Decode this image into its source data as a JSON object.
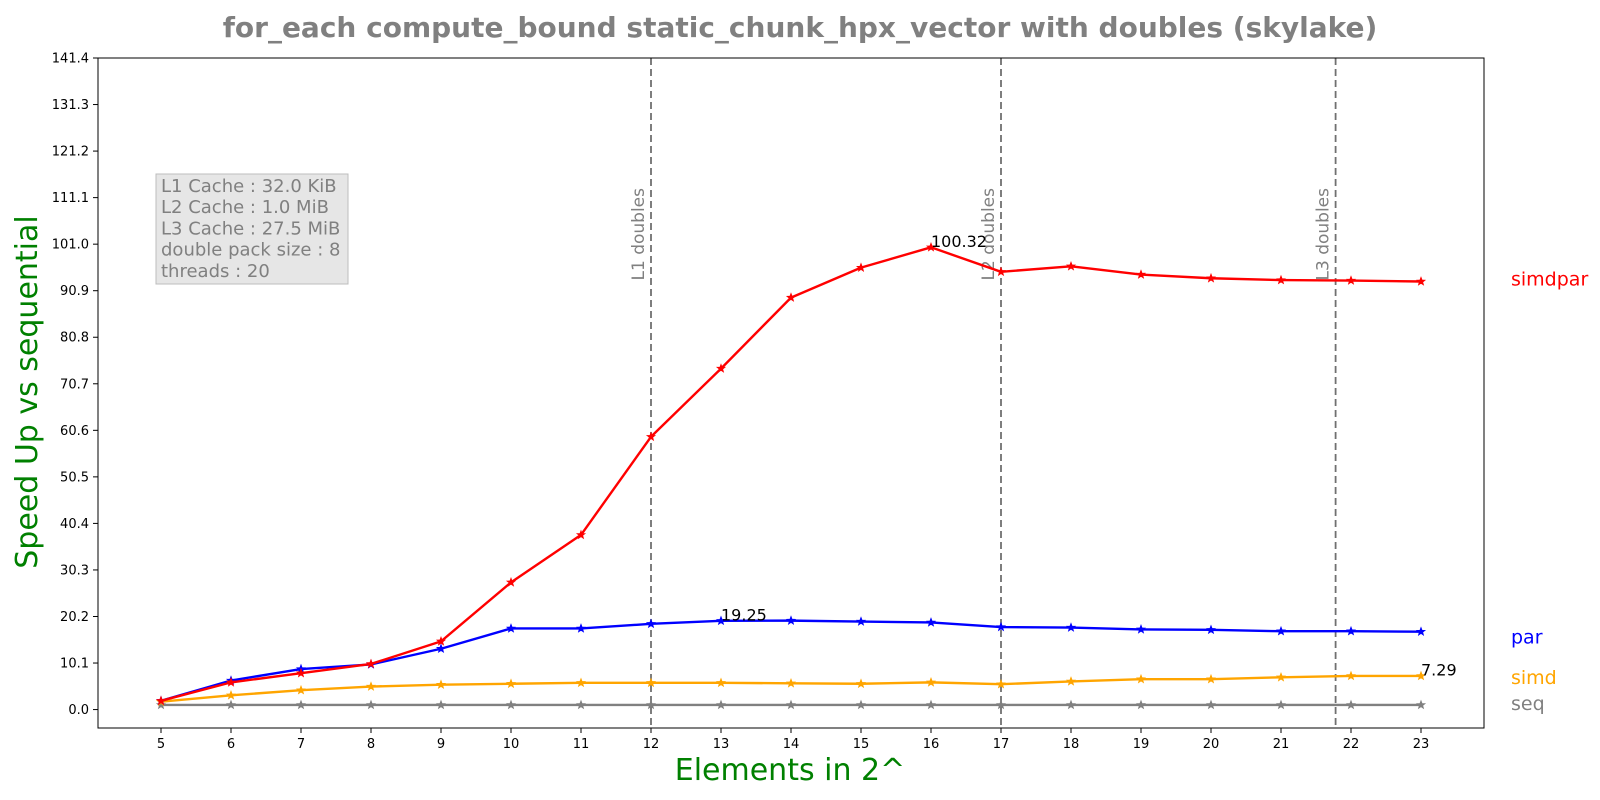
{
  "chart_data": {
    "type": "line",
    "title": "for_each compute_bound static_chunk_hpx_vector with doubles  (skylake)",
    "xlabel": "Elements in 2^",
    "ylabel": "Speed Up vs sequential",
    "x": [
      5,
      6,
      7,
      8,
      9,
      10,
      11,
      12,
      13,
      14,
      15,
      16,
      17,
      18,
      19,
      20,
      21,
      22,
      23
    ],
    "xlim": [
      4.1,
      23.9
    ],
    "ylim": [
      -4,
      141.4
    ],
    "yticks": [
      "0.0",
      "10.1",
      "20.2",
      "30.3",
      "40.4",
      "50.5",
      "60.6",
      "70.7",
      "80.8",
      "90.9",
      "101.0",
      "111.1",
      "121.2",
      "131.3",
      "141.4"
    ],
    "xticks": [
      "5",
      "6",
      "7",
      "8",
      "9",
      "10",
      "11",
      "12",
      "13",
      "14",
      "15",
      "16",
      "17",
      "18",
      "19",
      "20",
      "21",
      "22",
      "23"
    ],
    "grid": false,
    "marker": "star",
    "series": [
      {
        "name": "simdpar",
        "color": "#ff0000",
        "values": [
          1.9,
          5.9,
          7.9,
          9.9,
          14.8,
          27.6,
          37.9,
          59.2,
          74.0,
          89.4,
          95.9,
          100.32,
          95.0,
          96.2,
          94.4,
          93.6,
          93.2,
          93.1,
          92.9
        ]
      },
      {
        "name": "par",
        "color": "#0000ff",
        "values": [
          1.9,
          6.3,
          8.8,
          9.8,
          13.2,
          17.6,
          17.6,
          18.6,
          19.25,
          19.3,
          19.1,
          18.9,
          17.9,
          17.8,
          17.4,
          17.3,
          17.0,
          17.0,
          16.9
        ]
      },
      {
        "name": "simd",
        "color": "#ffa500",
        "values": [
          1.7,
          3.1,
          4.2,
          5.0,
          5.4,
          5.6,
          5.8,
          5.8,
          5.8,
          5.7,
          5.6,
          5.9,
          5.5,
          6.1,
          6.6,
          6.6,
          7.0,
          7.3,
          7.29
        ]
      },
      {
        "name": "seq",
        "color": "#808080",
        "values": [
          1.0,
          1.0,
          1.0,
          1.0,
          1.0,
          1.0,
          1.0,
          1.0,
          1.0,
          1.0,
          1.0,
          1.0,
          1.0,
          1.0,
          1.0,
          1.0,
          1.0,
          1.0,
          1.0
        ]
      }
    ],
    "vlines": [
      {
        "x": 12,
        "label": "L1 doubles"
      },
      {
        "x": 17,
        "label": "L2 doubles"
      },
      {
        "x": 21.78,
        "label": "L3 doubles"
      }
    ],
    "annotations": [
      {
        "text": "100.32",
        "x": 16,
        "y": 100.32
      },
      {
        "text": "19.25",
        "x": 13,
        "y": 19.25
      },
      {
        "text": "7.29",
        "x": 23,
        "y": 7.29
      }
    ],
    "info_box": [
      "L1 Cache : 32.0 KiB",
      "L2 Cache : 1.0 MiB",
      "L3 Cache : 27.5 MiB",
      "double pack size : 8",
      "threads : 20"
    ],
    "legend": "right, outside plot, one label per series"
  }
}
